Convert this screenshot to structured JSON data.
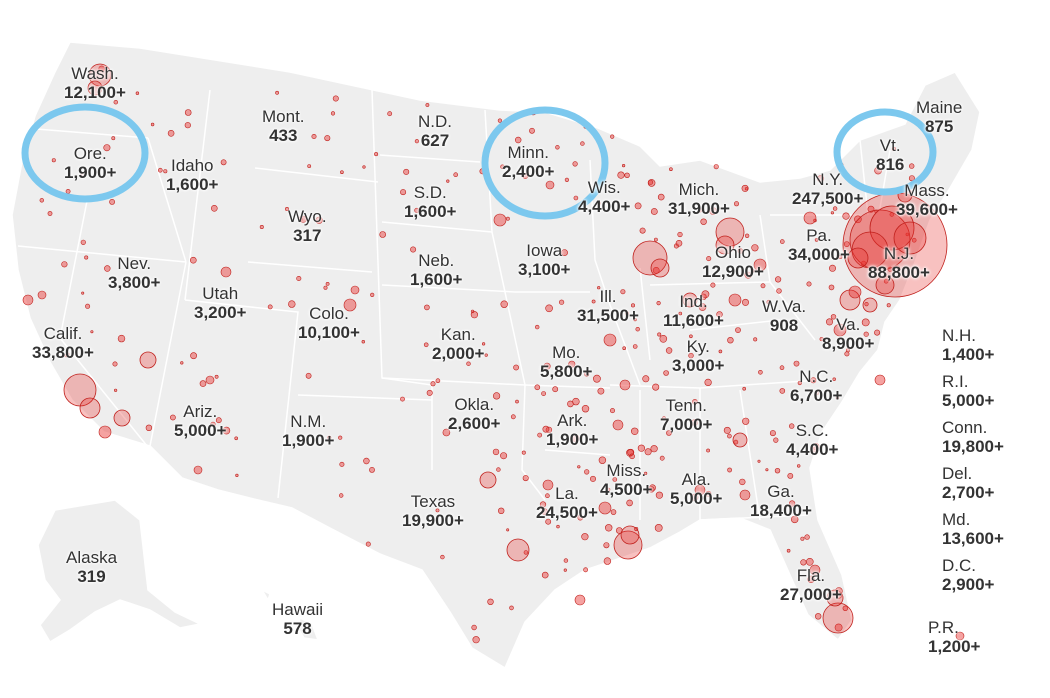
{
  "colors": {
    "land": "#eeeeee",
    "border": "#ffffff",
    "dot_fill": "#e8312e",
    "dot_stroke": "#c0201c",
    "highlight": "#7cc8ee",
    "text": "#333333"
  },
  "states": [
    {
      "id": "wa",
      "name": "Wash.",
      "count": "12,100+"
    },
    {
      "id": "or",
      "name": "Ore.",
      "count": "1,900+"
    },
    {
      "id": "ca",
      "name": "Calif.",
      "count": "33,800+"
    },
    {
      "id": "id",
      "name": "Idaho",
      "count": "1,600+"
    },
    {
      "id": "nv",
      "name": "Nev.",
      "count": "3,800+"
    },
    {
      "id": "mt",
      "name": "Mont.",
      "count": "433"
    },
    {
      "id": "wy",
      "name": "Wyo.",
      "count": "317"
    },
    {
      "id": "ut",
      "name": "Utah",
      "count": "3,200+"
    },
    {
      "id": "az",
      "name": "Ariz.",
      "count": "5,000+"
    },
    {
      "id": "co",
      "name": "Colo.",
      "count": "10,100+"
    },
    {
      "id": "nm",
      "name": "N.M.",
      "count": "1,900+"
    },
    {
      "id": "nd",
      "name": "N.D.",
      "count": "627"
    },
    {
      "id": "sd",
      "name": "S.D.",
      "count": "1,600+"
    },
    {
      "id": "ne",
      "name": "Neb.",
      "count": "1,600+"
    },
    {
      "id": "ks",
      "name": "Kan.",
      "count": "2,000+"
    },
    {
      "id": "ok",
      "name": "Okla.",
      "count": "2,600+"
    },
    {
      "id": "tx",
      "name": "Texas",
      "count": "19,900+"
    },
    {
      "id": "mn",
      "name": "Minn.",
      "count": "2,400+"
    },
    {
      "id": "ia",
      "name": "Iowa",
      "count": "3,100+"
    },
    {
      "id": "mo",
      "name": "Mo.",
      "count": "5,800+"
    },
    {
      "id": "ar",
      "name": "Ark.",
      "count": "1,900+"
    },
    {
      "id": "la",
      "name": "La.",
      "count": "24,500+"
    },
    {
      "id": "wi",
      "name": "Wis.",
      "count": "4,400+"
    },
    {
      "id": "il",
      "name": "Ill.",
      "count": "31,500+"
    },
    {
      "id": "mi",
      "name": "Mich.",
      "count": "31,900+"
    },
    {
      "id": "in",
      "name": "Ind.",
      "count": "11,600+"
    },
    {
      "id": "oh",
      "name": "Ohio",
      "count": "12,900+"
    },
    {
      "id": "ky",
      "name": "Ky.",
      "count": "3,000+"
    },
    {
      "id": "tn",
      "name": "Tenn.",
      "count": "7,000+"
    },
    {
      "id": "ms",
      "name": "Miss.",
      "count": "4,500+"
    },
    {
      "id": "al",
      "name": "Ala.",
      "count": "5,000+"
    },
    {
      "id": "ga",
      "name": "Ga.",
      "count": "18,400+"
    },
    {
      "id": "fl",
      "name": "Fla.",
      "count": "27,000+"
    },
    {
      "id": "sc",
      "name": "S.C.",
      "count": "4,400+"
    },
    {
      "id": "nc",
      "name": "N.C.",
      "count": "6,700+"
    },
    {
      "id": "va",
      "name": "Va.",
      "count": "8,900+"
    },
    {
      "id": "wv",
      "name": "W.Va.",
      "count": "908"
    },
    {
      "id": "pa",
      "name": "Pa.",
      "count": "34,000+"
    },
    {
      "id": "ny",
      "name": "N.Y.",
      "count": "247,500+"
    },
    {
      "id": "nj",
      "name": "N.J.",
      "count": "88,800+"
    },
    {
      "id": "vt",
      "name": "Vt.",
      "count": "816"
    },
    {
      "id": "me",
      "name": "Maine",
      "count": "875"
    },
    {
      "id": "ma",
      "name": "Mass.",
      "count": "39,600+"
    },
    {
      "id": "ak",
      "name": "Alaska",
      "count": "319"
    },
    {
      "id": "hi",
      "name": "Hawaii",
      "count": "578"
    }
  ],
  "side_list": [
    {
      "id": "nh",
      "name": "N.H.",
      "count": "1,400+"
    },
    {
      "id": "ri",
      "name": "R.I.",
      "count": "5,000+"
    },
    {
      "id": "ct",
      "name": "Conn.",
      "count": "19,800+"
    },
    {
      "id": "de",
      "name": "Del.",
      "count": "2,700+"
    },
    {
      "id": "md",
      "name": "Md.",
      "count": "13,600+"
    },
    {
      "id": "dc",
      "name": "D.C.",
      "count": "2,900+"
    },
    {
      "id": "pr",
      "name": "P.R.",
      "count": "1,200+"
    }
  ],
  "highlighted_states": [
    "or",
    "mn",
    "vt"
  ]
}
